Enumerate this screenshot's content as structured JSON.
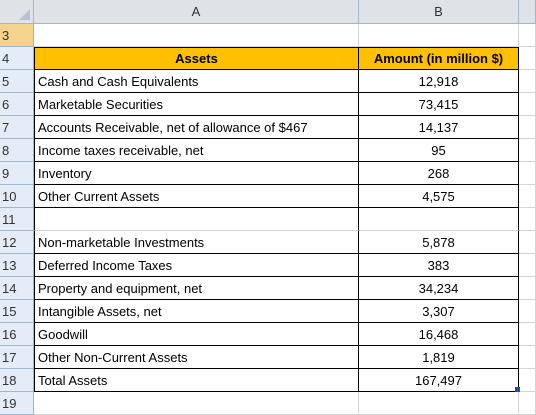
{
  "sheet": {
    "columns": [
      "A",
      "B"
    ],
    "header_row": {
      "row": "4",
      "a": "Assets",
      "b": "Amount (in million $)"
    },
    "rows": [
      {
        "row": "3",
        "a": "",
        "b": ""
      },
      {
        "row": "4",
        "a": "Assets",
        "b": "Amount (in million $)"
      },
      {
        "row": "5",
        "a": "Cash and Cash Equivalents",
        "b": "12,918"
      },
      {
        "row": "6",
        "a": "Marketable Securities",
        "b": "73,415"
      },
      {
        "row": "7",
        "a": "Accounts Receivable, net of allowance of $467",
        "b": "14,137"
      },
      {
        "row": "8",
        "a": "Income taxes receivable, net",
        "b": "95"
      },
      {
        "row": "9",
        "a": "Inventory",
        "b": "268"
      },
      {
        "row": "10",
        "a": "Other Current Assets",
        "b": "4,575"
      },
      {
        "row": "11",
        "a": "",
        "b": ""
      },
      {
        "row": "12",
        "a": "Non-marketable Investments",
        "b": "5,878"
      },
      {
        "row": "13",
        "a": "Deferred Income Taxes",
        "b": "383"
      },
      {
        "row": "14",
        "a": "Property and equipment, net",
        "b": "34,234"
      },
      {
        "row": "15",
        "a": "Intangible Assets, net",
        "b": "3,307"
      },
      {
        "row": "16",
        "a": "Goodwill",
        "b": "16,468"
      },
      {
        "row": "17",
        "a": "Other Non-Current Assets",
        "b": "1,819"
      },
      {
        "row": "18",
        "a": "Total Assets",
        "b": "167,497"
      },
      {
        "row": "19",
        "a": "",
        "b": ""
      }
    ]
  },
  "colors": {
    "header_fill": "#ffc000",
    "selected_row_header": "#f4d38c",
    "grid": "#d4d4d4"
  }
}
